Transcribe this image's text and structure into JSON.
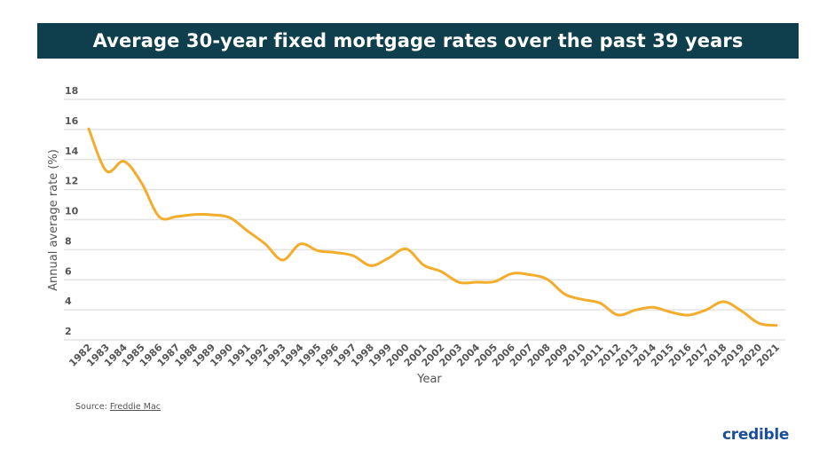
{
  "chart_data": {
    "type": "line",
    "title": "Average 30-year fixed mortgage rates over the past 39 years",
    "xlabel": "Year",
    "ylabel": "Annual average rate (%)",
    "ylim": [
      2,
      18
    ],
    "yticks": [
      2,
      4,
      6,
      8,
      10,
      12,
      14,
      16,
      18
    ],
    "grid": true,
    "line_color": "#f4ac2b",
    "x": [
      "1982",
      "1983",
      "1984",
      "1985",
      "1986",
      "1987",
      "1988",
      "1989",
      "1990",
      "1991",
      "1992",
      "1993",
      "1994",
      "1995",
      "1996",
      "1997",
      "1998",
      "1999",
      "2000",
      "2001",
      "2002",
      "2003",
      "2004",
      "2005",
      "2006",
      "2007",
      "2008",
      "2009",
      "2010",
      "2011",
      "2012",
      "2013",
      "2014",
      "2015",
      "2016",
      "2017",
      "2018",
      "2019",
      "2020",
      "2021"
    ],
    "values": [
      16.04,
      13.24,
      13.88,
      12.43,
      10.19,
      10.21,
      10.34,
      10.32,
      10.13,
      9.25,
      8.39,
      7.31,
      8.38,
      7.93,
      7.81,
      7.6,
      6.94,
      7.44,
      8.05,
      6.97,
      6.54,
      5.83,
      5.84,
      5.87,
      6.41,
      6.34,
      6.03,
      5.04,
      4.69,
      4.45,
      3.66,
      3.98,
      4.17,
      3.85,
      3.65,
      3.99,
      4.54,
      3.94,
      3.11,
      2.96
    ]
  },
  "source": {
    "label": "Source:",
    "link": "Freddie Mac"
  },
  "logo": "credible",
  "colors": {
    "title_bar": "#0f3f4c",
    "line": "#f4ac2b",
    "logo": "#1d4e9a"
  }
}
